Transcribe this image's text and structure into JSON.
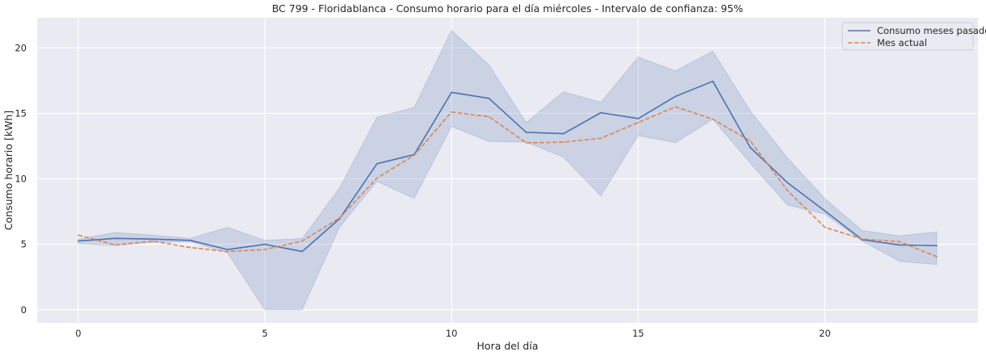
{
  "chart_data": {
    "type": "line",
    "title": "BC 799 - Floridablanca - Consumo horario para el día miércoles - Intervalo de confianza: 95%",
    "xlabel": "Hora del día",
    "ylabel": "Consumo horario [kWh]",
    "xlim": [
      -1.1,
      24.1
    ],
    "ylim": [
      -1.0,
      22.3
    ],
    "x_ticks": [
      0,
      5,
      10,
      15,
      20
    ],
    "y_ticks": [
      0,
      5,
      10,
      15,
      20
    ],
    "grid": true,
    "legend_position": "top-right",
    "x": [
      0,
      1,
      2,
      3,
      4,
      5,
      6,
      7,
      8,
      9,
      10,
      11,
      12,
      13,
      14,
      15,
      16,
      17,
      18,
      19,
      20,
      21,
      22,
      23
    ],
    "series": [
      {
        "name": "Consumo meses pasados",
        "style": "solid",
        "color": "#4c72b0",
        "values": [
          5.25,
          5.45,
          5.4,
          5.3,
          4.6,
          5.0,
          4.45,
          6.95,
          11.15,
          11.85,
          16.6,
          16.15,
          13.55,
          13.45,
          15.05,
          14.6,
          16.3,
          17.45,
          12.4,
          9.7,
          7.55,
          5.35,
          4.95,
          4.9
        ],
        "ci_lower": [
          5.05,
          4.9,
          5.15,
          5.2,
          4.35,
          0.0,
          0.0,
          6.3,
          9.8,
          8.5,
          14.0,
          12.85,
          12.8,
          11.65,
          8.7,
          13.3,
          12.75,
          14.55,
          11.2,
          8.0,
          7.3,
          5.25,
          3.7,
          3.45
        ],
        "ci_upper": [
          5.4,
          5.9,
          5.7,
          5.45,
          6.3,
          5.3,
          5.45,
          9.3,
          14.7,
          15.45,
          21.35,
          18.7,
          14.3,
          16.65,
          15.85,
          19.3,
          18.25,
          19.75,
          15.2,
          11.6,
          8.5,
          6.05,
          5.65,
          5.95
        ]
      },
      {
        "name": "Mes actual",
        "style": "dashed",
        "color": "#dd8452",
        "values": [
          5.7,
          4.95,
          5.25,
          4.75,
          4.45,
          4.6,
          5.25,
          7.0,
          10.05,
          11.8,
          15.1,
          14.75,
          12.75,
          12.8,
          13.1,
          14.3,
          15.5,
          14.55,
          12.9,
          9.1,
          6.3,
          5.4,
          5.2,
          4.05
        ]
      }
    ],
    "colors": {
      "axes_background": "#eaeaf2",
      "grid": "#ffffff",
      "ci_fill": "#4c72b0",
      "text": "#262626"
    }
  }
}
